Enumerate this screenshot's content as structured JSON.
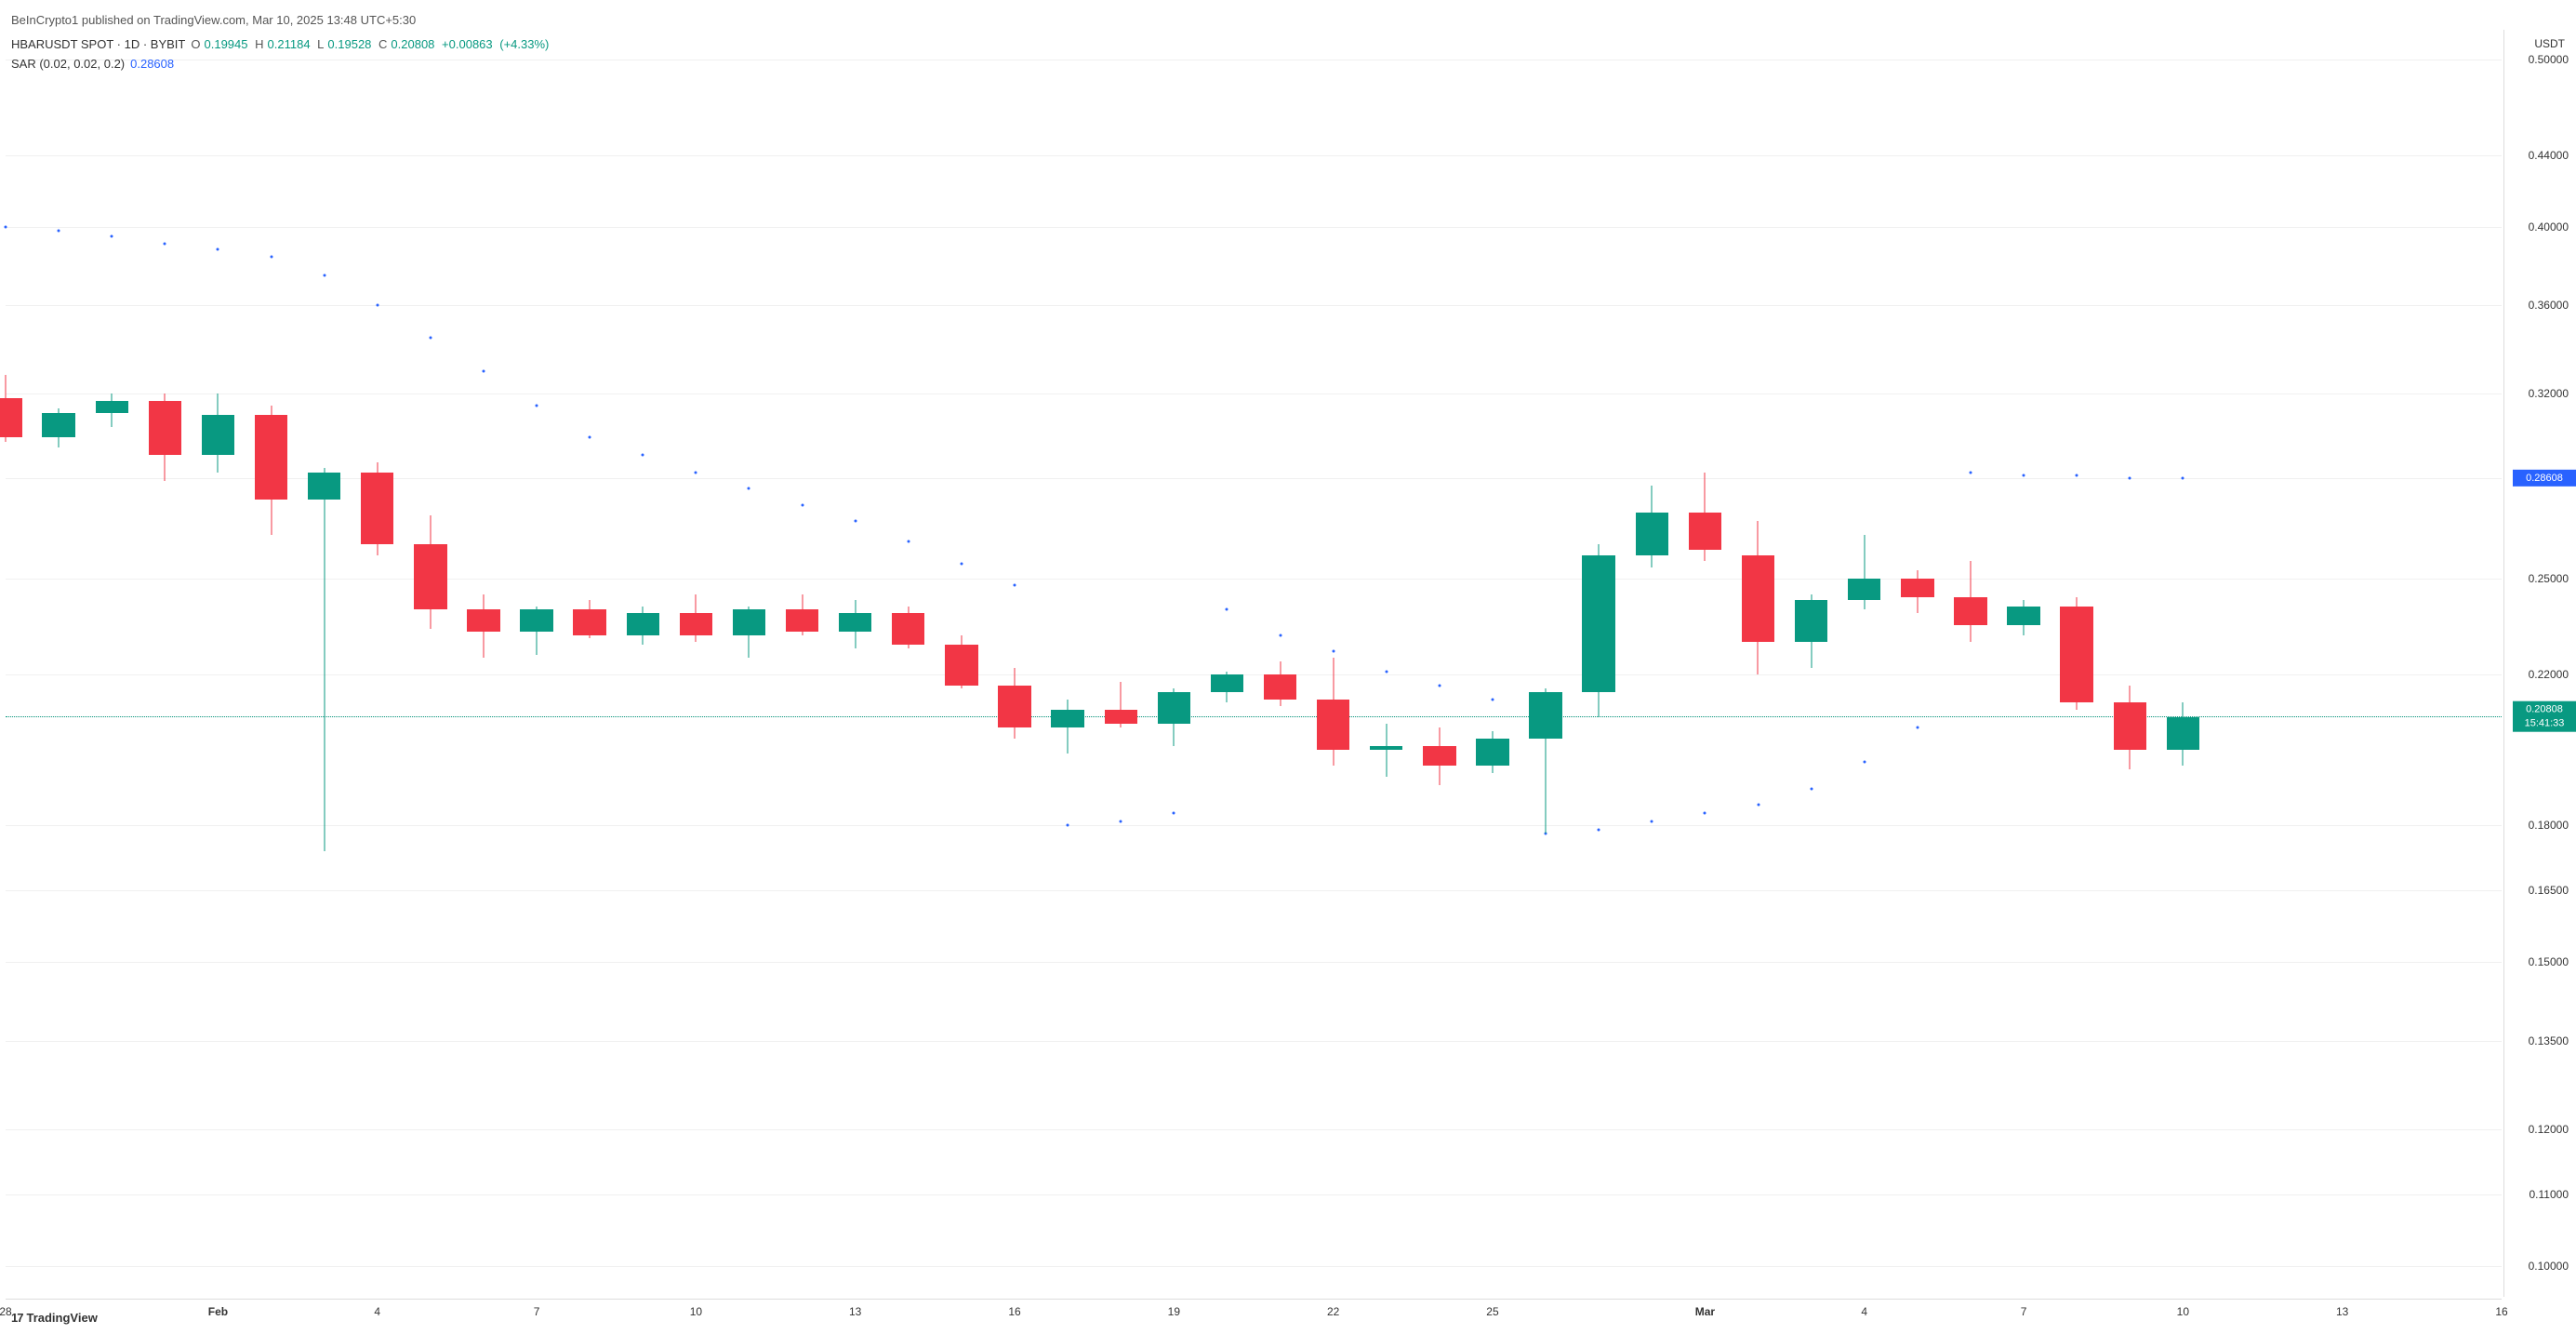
{
  "header": {
    "publisher": "BeInCrypto1",
    "published_on_text": "published on",
    "site": "TradingView.com",
    "date": "Mar 10, 2025 13:48 UTC+5:30"
  },
  "legend": {
    "symbol": "HBARUSDT SPOT",
    "interval": "1D",
    "exchange": "BYBIT",
    "ohlc": {
      "O": "0.19945",
      "H": "0.21184",
      "L": "0.19528",
      "C": "0.20808",
      "change": "+0.00863",
      "pct": "(+4.33%)",
      "color": "#089981"
    },
    "sar": {
      "label": "SAR (0.02, 0.02, 0.2)",
      "value": "0.28608",
      "color": "#2962ff"
    }
  },
  "watermark": {
    "logo": "‹›",
    "text": "TradingView"
  },
  "yaxis": {
    "header": "USDT",
    "scale": "log",
    "min": 0.096,
    "max": 0.52,
    "ticks": [
      "0.50000",
      "0.44000",
      "0.40000",
      "0.36000",
      "0.32000",
      "0.28608",
      "0.25000",
      "0.22000",
      "0.20808",
      "0.18000",
      "0.16500",
      "0.15000",
      "0.13500",
      "0.12000",
      "0.11000",
      "0.10000"
    ],
    "tick_values": [
      0.5,
      0.44,
      0.4,
      0.36,
      0.32,
      0.28608,
      0.25,
      0.22,
      0.20808,
      0.18,
      0.165,
      0.15,
      0.135,
      0.12,
      0.11,
      0.1
    ],
    "gridline_color": "#f0f0f0"
  },
  "xaxis": {
    "start_index": 0,
    "end_index": 47,
    "ticks": [
      {
        "idx": 0,
        "label": "28",
        "bold": false
      },
      {
        "idx": 4,
        "label": "Feb",
        "bold": true
      },
      {
        "idx": 7,
        "label": "4",
        "bold": false
      },
      {
        "idx": 10,
        "label": "7",
        "bold": false
      },
      {
        "idx": 13,
        "label": "10",
        "bold": false
      },
      {
        "idx": 16,
        "label": "13",
        "bold": false
      },
      {
        "idx": 19,
        "label": "16",
        "bold": false
      },
      {
        "idx": 22,
        "label": "19",
        "bold": false
      },
      {
        "idx": 25,
        "label": "22",
        "bold": false
      },
      {
        "idx": 28,
        "label": "25",
        "bold": false
      },
      {
        "idx": 32,
        "label": "Mar",
        "bold": true
      },
      {
        "idx": 35,
        "label": "4",
        "bold": false
      },
      {
        "idx": 38,
        "label": "7",
        "bold": false
      },
      {
        "idx": 41,
        "label": "10",
        "bold": false
      },
      {
        "idx": 44,
        "label": "13",
        "bold": false
      },
      {
        "idx": 47,
        "label": "16",
        "bold": false
      }
    ]
  },
  "colors": {
    "up": "#089981",
    "down": "#f23645",
    "sar": "#2962ff",
    "text_gray": "#555555"
  },
  "candles": [
    {
      "o": 0.318,
      "h": 0.328,
      "l": 0.3,
      "c": 0.302
    },
    {
      "o": 0.302,
      "h": 0.314,
      "l": 0.298,
      "c": 0.312
    },
    {
      "o": 0.312,
      "h": 0.32,
      "l": 0.306,
      "c": 0.317
    },
    {
      "o": 0.317,
      "h": 0.32,
      "l": 0.285,
      "c": 0.295
    },
    {
      "o": 0.295,
      "h": 0.32,
      "l": 0.288,
      "c": 0.311
    },
    {
      "o": 0.311,
      "h": 0.315,
      "l": 0.265,
      "c": 0.278
    },
    {
      "o": 0.278,
      "h": 0.29,
      "l": 0.174,
      "c": 0.288
    },
    {
      "o": 0.288,
      "h": 0.292,
      "l": 0.258,
      "c": 0.262
    },
    {
      "o": 0.262,
      "h": 0.272,
      "l": 0.234,
      "c": 0.24
    },
    {
      "o": 0.24,
      "h": 0.245,
      "l": 0.225,
      "c": 0.233
    },
    {
      "o": 0.233,
      "h": 0.241,
      "l": 0.226,
      "c": 0.24
    },
    {
      "o": 0.24,
      "h": 0.243,
      "l": 0.231,
      "c": 0.232
    },
    {
      "o": 0.232,
      "h": 0.241,
      "l": 0.229,
      "c": 0.239
    },
    {
      "o": 0.239,
      "h": 0.245,
      "l": 0.23,
      "c": 0.232
    },
    {
      "o": 0.232,
      "h": 0.241,
      "l": 0.225,
      "c": 0.24
    },
    {
      "o": 0.24,
      "h": 0.245,
      "l": 0.232,
      "c": 0.233
    },
    {
      "o": 0.233,
      "h": 0.243,
      "l": 0.228,
      "c": 0.239
    },
    {
      "o": 0.239,
      "h": 0.241,
      "l": 0.228,
      "c": 0.229
    },
    {
      "o": 0.229,
      "h": 0.232,
      "l": 0.216,
      "c": 0.217
    },
    {
      "o": 0.217,
      "h": 0.222,
      "l": 0.202,
      "c": 0.205
    },
    {
      "o": 0.205,
      "h": 0.213,
      "l": 0.198,
      "c": 0.21
    },
    {
      "o": 0.21,
      "h": 0.218,
      "l": 0.205,
      "c": 0.206
    },
    {
      "o": 0.206,
      "h": 0.216,
      "l": 0.2,
      "c": 0.215
    },
    {
      "o": 0.215,
      "h": 0.221,
      "l": 0.212,
      "c": 0.22
    },
    {
      "o": 0.22,
      "h": 0.224,
      "l": 0.211,
      "c": 0.213
    },
    {
      "o": 0.213,
      "h": 0.225,
      "l": 0.195,
      "c": 0.199
    },
    {
      "o": 0.199,
      "h": 0.206,
      "l": 0.192,
      "c": 0.2
    },
    {
      "o": 0.2,
      "h": 0.205,
      "l": 0.19,
      "c": 0.195
    },
    {
      "o": 0.195,
      "h": 0.204,
      "l": 0.193,
      "c": 0.202
    },
    {
      "o": 0.202,
      "h": 0.216,
      "l": 0.178,
      "c": 0.215
    },
    {
      "o": 0.215,
      "h": 0.262,
      "l": 0.208,
      "c": 0.258
    },
    {
      "o": 0.258,
      "h": 0.283,
      "l": 0.254,
      "c": 0.273
    },
    {
      "o": 0.273,
      "h": 0.288,
      "l": 0.256,
      "c": 0.26
    },
    {
      "o": 0.258,
      "h": 0.27,
      "l": 0.22,
      "c": 0.23
    },
    {
      "o": 0.23,
      "h": 0.245,
      "l": 0.222,
      "c": 0.243
    },
    {
      "o": 0.243,
      "h": 0.265,
      "l": 0.24,
      "c": 0.25
    },
    {
      "o": 0.25,
      "h": 0.253,
      "l": 0.239,
      "c": 0.244
    },
    {
      "o": 0.244,
      "h": 0.256,
      "l": 0.23,
      "c": 0.235
    },
    {
      "o": 0.235,
      "h": 0.243,
      "l": 0.232,
      "c": 0.241
    },
    {
      "o": 0.241,
      "h": 0.244,
      "l": 0.21,
      "c": 0.212
    },
    {
      "o": 0.212,
      "h": 0.217,
      "l": 0.194,
      "c": 0.199
    },
    {
      "o": 0.199,
      "h": 0.212,
      "l": 0.195,
      "c": 0.208
    }
  ],
  "sar_points": [
    {
      "idx": 0,
      "val": 0.4
    },
    {
      "idx": 1,
      "val": 0.398
    },
    {
      "idx": 2,
      "val": 0.395
    },
    {
      "idx": 3,
      "val": 0.391
    },
    {
      "idx": 4,
      "val": 0.388
    },
    {
      "idx": 5,
      "val": 0.384
    },
    {
      "idx": 6,
      "val": 0.375
    },
    {
      "idx": 7,
      "val": 0.36
    },
    {
      "idx": 8,
      "val": 0.345
    },
    {
      "idx": 9,
      "val": 0.33
    },
    {
      "idx": 10,
      "val": 0.315
    },
    {
      "idx": 11,
      "val": 0.302
    },
    {
      "idx": 12,
      "val": 0.295
    },
    {
      "idx": 13,
      "val": 0.288
    },
    {
      "idx": 14,
      "val": 0.282
    },
    {
      "idx": 15,
      "val": 0.276
    },
    {
      "idx": 16,
      "val": 0.27
    },
    {
      "idx": 17,
      "val": 0.263
    },
    {
      "idx": 18,
      "val": 0.255
    },
    {
      "idx": 19,
      "val": 0.248
    },
    {
      "idx": 20,
      "val": 0.18
    },
    {
      "idx": 21,
      "val": 0.181
    },
    {
      "idx": 22,
      "val": 0.183
    },
    {
      "idx": 23,
      "val": 0.24
    },
    {
      "idx": 24,
      "val": 0.232
    },
    {
      "idx": 25,
      "val": 0.227
    },
    {
      "idx": 26,
      "val": 0.221
    },
    {
      "idx": 27,
      "val": 0.217
    },
    {
      "idx": 28,
      "val": 0.213
    },
    {
      "idx": 29,
      "val": 0.178
    },
    {
      "idx": 30,
      "val": 0.179
    },
    {
      "idx": 31,
      "val": 0.181
    },
    {
      "idx": 32,
      "val": 0.183
    },
    {
      "idx": 33,
      "val": 0.185
    },
    {
      "idx": 34,
      "val": 0.189
    },
    {
      "idx": 35,
      "val": 0.196
    },
    {
      "idx": 36,
      "val": 0.205
    },
    {
      "idx": 37,
      "val": 0.288
    },
    {
      "idx": 38,
      "val": 0.287
    },
    {
      "idx": 39,
      "val": 0.287
    },
    {
      "idx": 40,
      "val": 0.286
    },
    {
      "idx": 41,
      "val": 0.286
    }
  ],
  "price_markers": {
    "sar_current": {
      "value": 0.28608,
      "label": "0.28608",
      "bg": "#2962ff"
    },
    "close_current": {
      "value": 0.20808,
      "label_top": "0.20808",
      "label_bottom": "15:41:33",
      "bg": "#089981",
      "line_color": "#089981"
    }
  }
}
